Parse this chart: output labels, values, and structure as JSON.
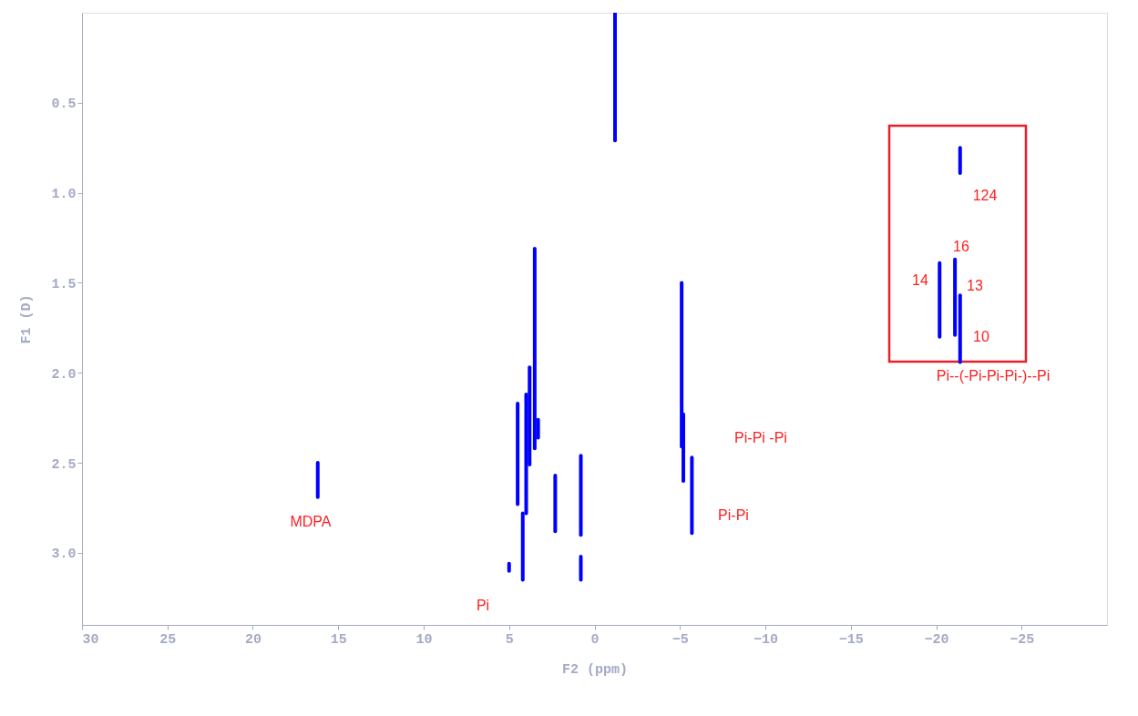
{
  "chart_data": {
    "type": "line",
    "xlabel": "F2 (ppm)",
    "ylabel": "F1 (D)",
    "xlim": [
      30,
      -30
    ],
    "xticks": [
      30,
      25,
      20,
      15,
      10,
      5,
      0,
      -5,
      -10,
      -15,
      -20,
      -25
    ],
    "ylim": [
      3.4,
      0.0
    ],
    "yticks": [
      0.5,
      {
        "value": 1,
        "label": "1.0"
      },
      1.5,
      {
        "value": 2,
        "label": "2.0"
      },
      2.5,
      {
        "value": 3,
        "label": "3.0"
      }
    ],
    "grid": false,
    "legend": false,
    "marker": "none",
    "line_style": "solid",
    "series": [
      {
        "color": "#0000ff",
        "x": [
          16.2,
          16.2
        ],
        "values": [
          2.5,
          2.69
        ]
      },
      {
        "color": "#0000ff",
        "x": [
          -1.2,
          -1.2
        ],
        "values": [
          0.0,
          0.71
        ]
      },
      {
        "color": "#0000ff",
        "x": [
          3.5,
          3.5
        ],
        "values": [
          1.31,
          2.42
        ]
      },
      {
        "color": "#0000ff",
        "x": [
          3.8,
          3.8
        ],
        "values": [
          1.97,
          2.51
        ]
      },
      {
        "color": "#0000ff",
        "x": [
          4.0,
          4.0
        ],
        "values": [
          2.12,
          2.78
        ]
      },
      {
        "color": "#0000ff",
        "x": [
          4.5,
          4.5
        ],
        "values": [
          2.17,
          2.73
        ]
      },
      {
        "color": "#0000ff",
        "x": [
          4.2,
          4.2
        ],
        "values": [
          2.78,
          3.15
        ]
      },
      {
        "color": "#0000ff",
        "x": [
          3.3,
          3.3
        ],
        "values": [
          2.26,
          2.36
        ]
      },
      {
        "color": "#0000ff",
        "x": [
          5.0,
          5.0
        ],
        "values": [
          3.06,
          3.1
        ]
      },
      {
        "color": "#0000ff",
        "x": [
          2.3,
          2.3
        ],
        "values": [
          2.57,
          2.88
        ]
      },
      {
        "color": "#0000ff",
        "x": [
          0.8,
          0.8
        ],
        "values": [
          2.46,
          2.9
        ]
      },
      {
        "color": "#0000ff",
        "x": [
          0.8,
          0.8
        ],
        "values": [
          3.02,
          3.15
        ]
      },
      {
        "color": "#0000ff",
        "x": [
          -5.1,
          -5.1
        ],
        "values": [
          1.5,
          2.41
        ]
      },
      {
        "color": "#0000ff",
        "x": [
          -5.2,
          -5.2
        ],
        "values": [
          2.23,
          2.6
        ]
      },
      {
        "color": "#0000ff",
        "x": [
          -5.7,
          -5.7
        ],
        "values": [
          2.47,
          2.89
        ]
      },
      {
        "color": "#0000ff",
        "x": [
          -21.4,
          -21.4
        ],
        "values": [
          0.75,
          0.89
        ]
      },
      {
        "color": "#0000ff",
        "x": [
          -20.2,
          -20.2
        ],
        "values": [
          1.39,
          1.8
        ]
      },
      {
        "color": "#0000ff",
        "x": [
          -21.1,
          -21.1
        ],
        "values": [
          1.37,
          1.79
        ]
      },
      {
        "color": "#0000ff",
        "x": [
          -21.4,
          -21.4
        ],
        "values": [
          1.57,
          1.94
        ]
      }
    ],
    "annotations": [
      "MDPA",
      "Pi",
      "Pi-Pi -Pi",
      "Pi-Pi",
      "124",
      "16",
      "14",
      "13",
      "10",
      "Pi--(-Pi-Pi-Pi-)--Pi"
    ]
  }
}
